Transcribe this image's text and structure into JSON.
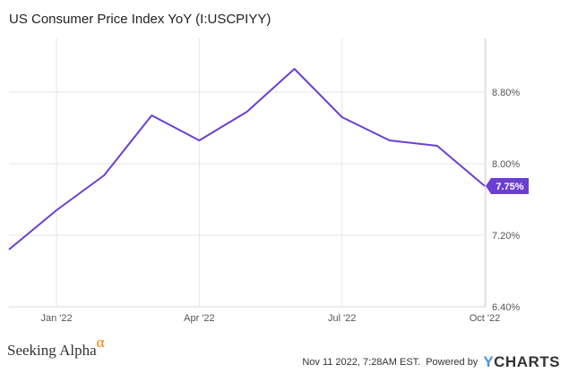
{
  "chart_data": {
    "type": "line",
    "title": "US Consumer Price Index YoY (I:USCPIYY)",
    "x": [
      "2021-12",
      "2022-01",
      "2022-02",
      "2022-03",
      "2022-04",
      "2022-05",
      "2022-06",
      "2022-07",
      "2022-08",
      "2022-09",
      "2022-10"
    ],
    "x_tick_labels": [
      "Jan '22",
      "Apr '22",
      "Jul '22",
      "Oct '22"
    ],
    "y_tick_labels": [
      "6.40%",
      "7.20%",
      "8.00%",
      "8.80%"
    ],
    "ylim": [
      6.4,
      9.4
    ],
    "series": [
      {
        "values": [
          7.04,
          7.48,
          7.87,
          8.54,
          8.26,
          8.58,
          9.06,
          8.52,
          8.26,
          8.2,
          7.75
        ],
        "color": "#6b3fd4"
      }
    ],
    "last_value_label": "7.75%",
    "grid": true
  },
  "footer": {
    "brand": "Seeking Alpha",
    "brand_symbol": "α",
    "timestamp": "Nov 11 2022, 7:28AM EST.",
    "powered_by": "Powered by",
    "logo_y": "Y",
    "logo_rest": "CHARTS"
  }
}
